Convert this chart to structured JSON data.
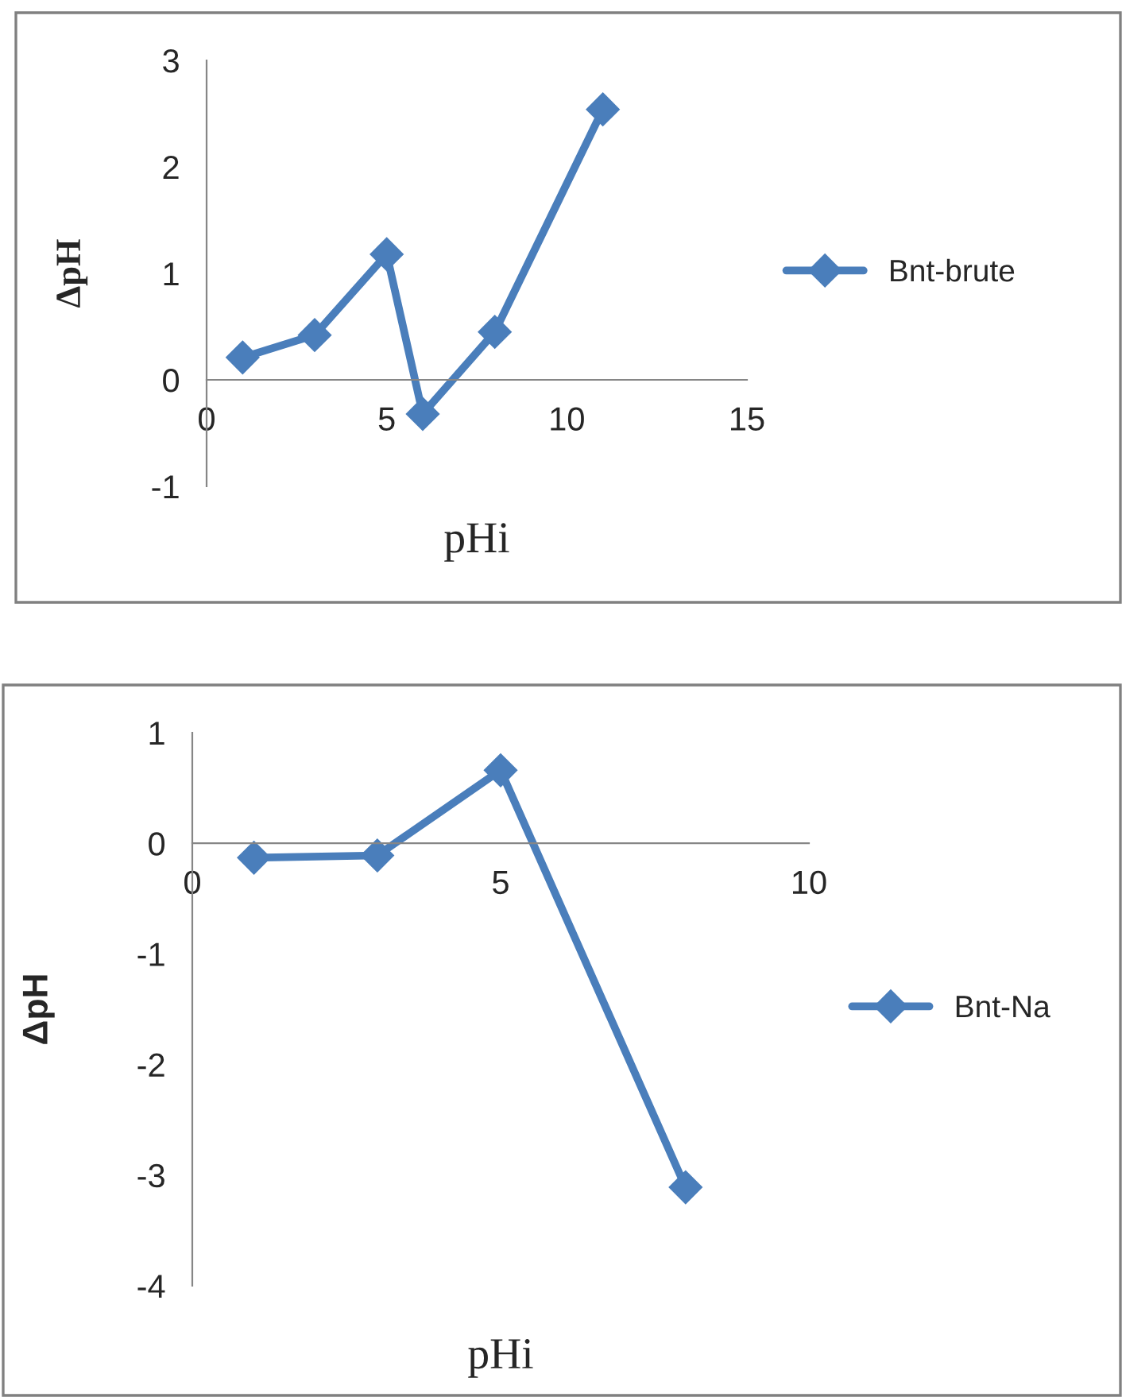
{
  "chart_data": [
    {
      "type": "line",
      "xlabel": "pHi",
      "ylabel": "ΔpH",
      "xlim": [
        0,
        15
      ],
      "xticks": [
        0,
        5,
        10,
        15
      ],
      "ylim": [
        -1,
        3
      ],
      "yticks": [
        -1,
        0,
        1,
        2,
        3
      ],
      "grid": false,
      "legend": "right",
      "marker": "diamond",
      "line_style": "solid",
      "series": [
        {
          "name": "Bnt-brute",
          "color": "#4a7ebb",
          "x": [
            1,
            3,
            5,
            6,
            8,
            11
          ],
          "values": [
            0.21,
            0.42,
            1.18,
            -0.32,
            0.45,
            2.54
          ]
        }
      ]
    },
    {
      "type": "line",
      "xlabel": "pHi",
      "ylabel": "ΔpH",
      "xlim": [
        0,
        10
      ],
      "xticks": [
        0,
        5,
        10
      ],
      "ylim": [
        -4,
        1
      ],
      "yticks": [
        -4,
        -3,
        -2,
        -1,
        0,
        1
      ],
      "grid": false,
      "legend": "right",
      "marker": "diamond",
      "line_style": "solid",
      "series": [
        {
          "name": "Bnt-Na",
          "color": "#4a7ebb",
          "x": [
            1,
            3,
            5,
            8
          ],
          "values": [
            -0.13,
            -0.11,
            0.66,
            -3.11
          ]
        }
      ]
    }
  ]
}
